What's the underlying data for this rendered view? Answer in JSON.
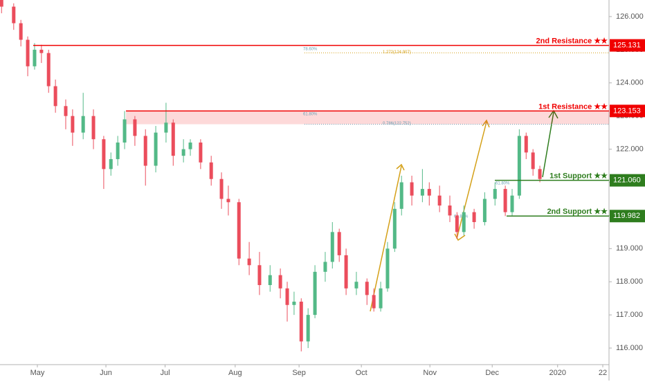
{
  "chart_data": {
    "type": "candlestick",
    "up_color": "#53b987",
    "down_color": "#eb4d5c",
    "x": [
      0.5,
      4.4,
      6.7,
      8.9,
      11.1,
      13.3,
      15.6,
      17.8,
      21.1,
      23.3,
      26.7,
      30,
      33.3,
      35.6,
      37.8,
      40,
      43.3,
      46.7,
      50,
      53.3,
      55.6,
      58.9,
      61.1,
      64.4,
      67.8,
      71.1,
      73.3,
      76.7,
      80,
      83.3,
      86.7,
      90,
      92.2,
      94.4,
      96.7,
      98.9,
      101.1,
      104.4,
      106.7,
      108.9,
      111.1,
      114.4,
      117.8,
      120,
      122.2,
      124.4,
      126.7,
      128.9,
      132.2,
      135.6,
      137.8,
      141.1,
      144.4,
      146.7,
      148.9,
      152.2,
      155.6,
      158.9,
      162.2,
      164.4,
      166.7,
      168.9,
      171.1,
      173.3
    ],
    "open": [
      126.6,
      126.3,
      125.8,
      125.3,
      124.5,
      125.0,
      124.9,
      123.9,
      123.3,
      123.0,
      122.5,
      123.0,
      122.3,
      121.4,
      121.7,
      122.2,
      122.9,
      122.4,
      121.5,
      122.5,
      122.8,
      121.8,
      122.0,
      122.2,
      121.6,
      121.1,
      120.5,
      120.4,
      118.7,
      118.5,
      117.9,
      118.2,
      117.8,
      117.3,
      117.4,
      116.2,
      117.0,
      118.3,
      118.6,
      119.5,
      118.8,
      117.8,
      118.0,
      117.6,
      117.2,
      117.8,
      119.0,
      120.2,
      121.0,
      120.6,
      120.8,
      120.6,
      120.3,
      120.0,
      119.5,
      120.1,
      119.8,
      120.5,
      120.8,
      120.1,
      120.6,
      122.4,
      121.9,
      121.4
    ],
    "high": [
      126.8,
      126.4,
      125.9,
      125.4,
      125.2,
      125.15,
      125.0,
      124.1,
      123.5,
      123.2,
      123.7,
      123.2,
      122.4,
      121.9,
      122.4,
      123.15,
      123.0,
      122.6,
      122.7,
      123.4,
      122.9,
      122.3,
      122.3,
      122.3,
      121.8,
      121.3,
      120.9,
      120.5,
      119.2,
      118.9,
      118.5,
      118.4,
      118.0,
      117.7,
      117.5,
      117.2,
      118.5,
      118.9,
      119.8,
      119.6,
      119.0,
      118.3,
      118.1,
      117.8,
      118.0,
      119.2,
      120.4,
      121.2,
      121.2,
      121.4,
      121.0,
      120.9,
      120.6,
      120.1,
      120.3,
      120.2,
      120.7,
      121.0,
      120.9,
      120.8,
      122.6,
      122.5,
      122.0,
      121.5
    ],
    "low": [
      126.1,
      125.6,
      125.1,
      124.2,
      124.4,
      124.6,
      123.7,
      123.1,
      122.6,
      122.1,
      122.3,
      122.0,
      120.8,
      121.2,
      121.5,
      122.0,
      122.1,
      120.9,
      121.3,
      122.2,
      121.5,
      121.6,
      121.8,
      121.4,
      120.9,
      120.2,
      120.0,
      118.5,
      118.2,
      117.6,
      117.7,
      117.5,
      116.8,
      117.0,
      115.9,
      116.0,
      116.9,
      118.0,
      118.4,
      118.6,
      117.6,
      117.6,
      117.3,
      117.1,
      117.1,
      117.7,
      118.9,
      120.0,
      120.3,
      120.4,
      120.3,
      120.1,
      119.8,
      119.3,
      119.4,
      119.6,
      119.7,
      120.3,
      119.98,
      120.0,
      120.5,
      121.7,
      121.2,
      121.0
    ],
    "close": [
      126.3,
      125.8,
      125.3,
      124.5,
      125.0,
      124.9,
      123.9,
      123.3,
      123.0,
      122.5,
      123.0,
      122.3,
      121.4,
      121.7,
      122.2,
      122.9,
      122.4,
      121.5,
      122.5,
      122.8,
      121.8,
      122.0,
      122.2,
      121.6,
      121.1,
      120.5,
      120.4,
      118.7,
      118.5,
      117.9,
      118.2,
      117.8,
      117.3,
      117.4,
      116.2,
      117.0,
      118.3,
      118.6,
      119.5,
      118.8,
      117.8,
      118.0,
      117.6,
      117.2,
      117.8,
      119.0,
      120.2,
      121.0,
      120.6,
      120.8,
      120.6,
      120.3,
      120.0,
      119.5,
      120.1,
      119.8,
      120.5,
      120.8,
      120.1,
      120.6,
      122.4,
      121.9,
      121.4,
      121.1
    ],
    "xlim": [
      0,
      195.5
    ],
    "xticks": [
      {
        "value": 12,
        "label": "May"
      },
      {
        "value": 34,
        "label": "Jun"
      },
      {
        "value": 53,
        "label": "Jul"
      },
      {
        "value": 75.5,
        "label": "Aug"
      },
      {
        "value": 96,
        "label": "Sep"
      },
      {
        "value": 116,
        "label": "Oct"
      },
      {
        "value": 138,
        "label": "Nov"
      },
      {
        "value": 158,
        "label": "Dec"
      },
      {
        "value": 179,
        "label": "2020"
      },
      {
        "value": 193.5,
        "label": "22"
      }
    ],
    "ylim": [
      115.5,
      126.5
    ],
    "yticks": [
      {
        "value": 116,
        "label": "116.000"
      },
      {
        "value": 117,
        "label": "117.000"
      },
      {
        "value": 118,
        "label": "118.000"
      },
      {
        "value": 119,
        "label": "119.000"
      },
      {
        "value": 120,
        "label": "120.000"
      },
      {
        "value": 121,
        "label": "121.000"
      },
      {
        "value": 122,
        "label": "122.000"
      },
      {
        "value": 123,
        "label": "123.000"
      },
      {
        "value": 124,
        "label": "124.000"
      },
      {
        "value": 125,
        "label": "125.000"
      },
      {
        "value": 126,
        "label": "126.000"
      }
    ],
    "levels": [
      {
        "name": "2nd Resistance ★★",
        "value": 125.131,
        "color": "#f00000"
      },
      {
        "name": "1st Resistance ★★",
        "value": 123.153,
        "color": "#f00000"
      },
      {
        "name": "1st Support ★★",
        "value": 121.06,
        "label": "121.060",
        "color": "#2e7d1e"
      },
      {
        "name": "2nd Support ★★",
        "value": 119.982,
        "color": "#2e7d1e"
      }
    ],
    "zone": [
      122.752,
      123.153
    ],
    "fib_lines": [
      {
        "label": "1.272(124.907)",
        "value": 124.907,
        "color": "#d4a017"
      },
      {
        "label": "0.786(122.752)",
        "value": 122.752,
        "color": "#6a9fb5"
      }
    ],
    "fib_percent": [
      "78.60%",
      "61.80%",
      "61.80%",
      "61.80%"
    ]
  }
}
